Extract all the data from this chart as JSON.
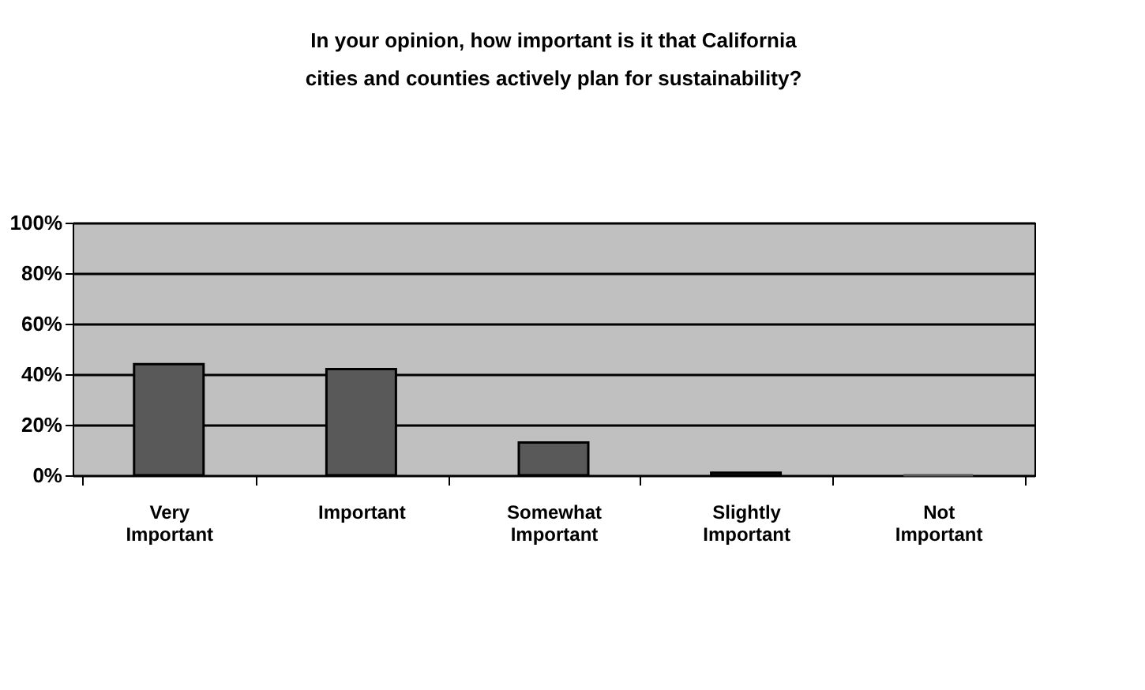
{
  "chart_data": {
    "type": "bar",
    "title": "In your opinion, how important is it that California cities and counties actively plan for sustainability?",
    "categories": [
      "Very Important",
      "Important",
      "Somewhat Important",
      "Slightly Important",
      "Not Important"
    ],
    "values": [
      44,
      42,
      13,
      1,
      0
    ],
    "color": "#595959",
    "ylim": [
      0,
      100
    ],
    "yticks": [
      {
        "value": 0,
        "label": "0%"
      },
      {
        "value": 20,
        "label": "20%"
      },
      {
        "value": 40,
        "label": "40%"
      },
      {
        "value": 60,
        "label": "60%"
      },
      {
        "value": 80,
        "label": "80%"
      },
      {
        "value": 100,
        "label": "100%"
      }
    ],
    "grid": "y"
  }
}
